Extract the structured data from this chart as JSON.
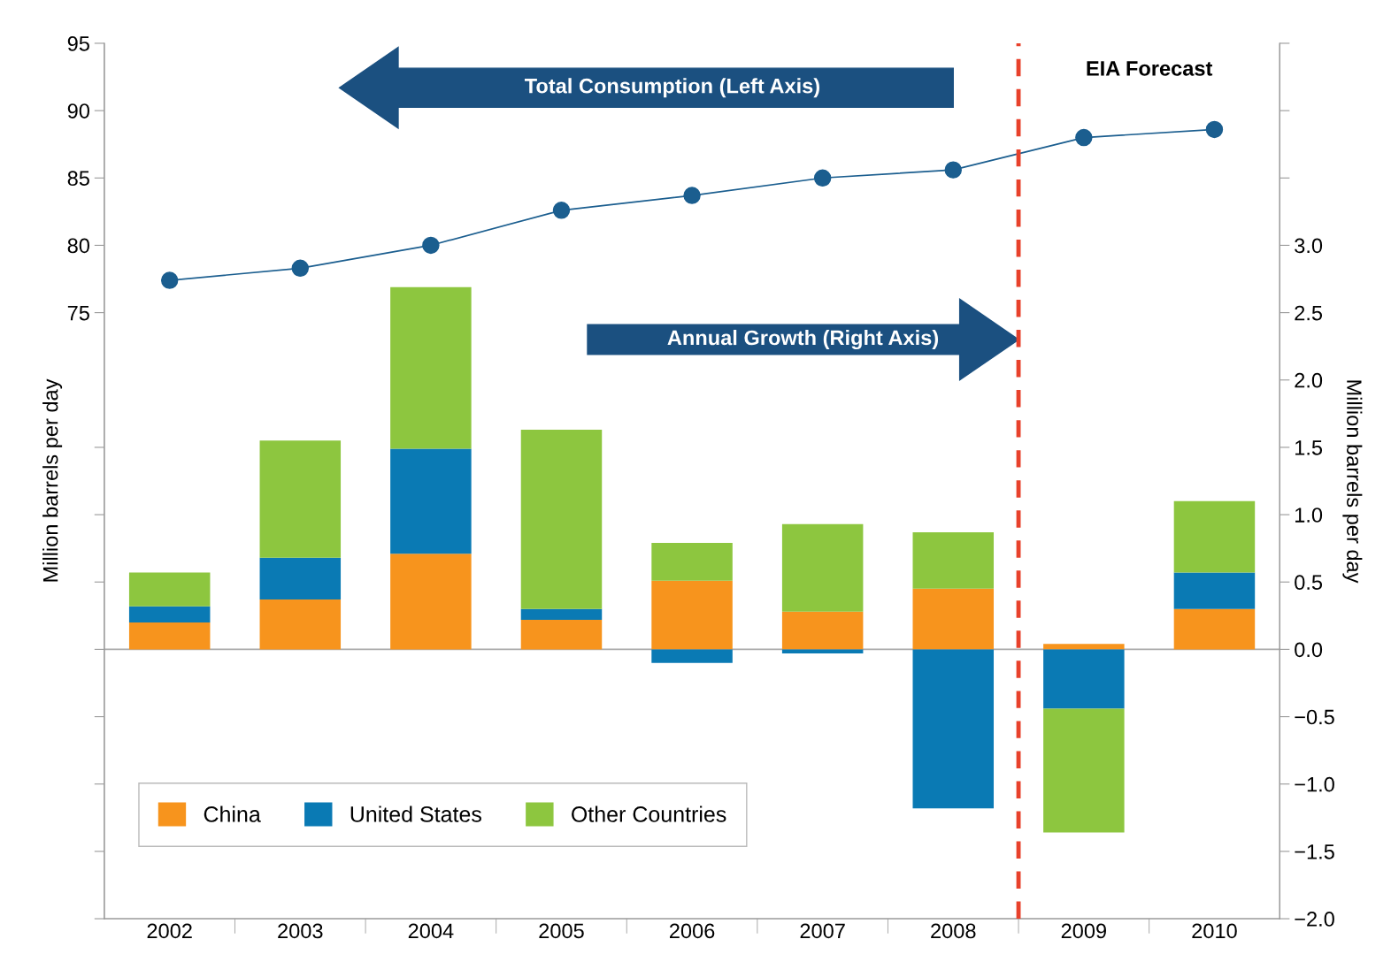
{
  "chart_data": {
    "type": "bar",
    "stacked": true,
    "x": [
      2002,
      2003,
      2004,
      2005,
      2006,
      2007,
      2008,
      2009,
      2010
    ],
    "xlim": [
      2001.5,
      2010.5
    ],
    "xticks": [
      2002,
      2003,
      2004,
      2005,
      2006,
      2007,
      2008,
      2009,
      2010
    ],
    "ref_lines": [
      {
        "axis": "x",
        "value": 2008.5,
        "color": "#e8412b",
        "line_style": "dashed"
      },
      {
        "axis": "y2",
        "value": 0.0,
        "color": "#aaaaaa",
        "line_style": "solid"
      }
    ],
    "series": [
      {
        "name": "China",
        "color": "#f7941d",
        "axis": "y2",
        "values": [
          0.2,
          0.37,
          0.71,
          0.22,
          0.51,
          0.28,
          0.45,
          0.04,
          0.3
        ]
      },
      {
        "name": "United States",
        "color": "#0a7ab4",
        "axis": "y2",
        "values": [
          0.12,
          0.31,
          0.78,
          0.08,
          -0.1,
          -0.03,
          -1.18,
          -0.44,
          0.27
        ]
      },
      {
        "name": "Other Countries",
        "color": "#8dc63f",
        "axis": "y2",
        "values": [
          0.25,
          0.87,
          1.2,
          1.33,
          0.28,
          0.65,
          0.42,
          -0.92,
          0.53
        ]
      },
      {
        "type": "line",
        "color": "#1b5e8f",
        "axis": "y",
        "marker": "circle",
        "values": [
          77.4,
          78.3,
          80.0,
          82.6,
          83.7,
          85.0,
          85.6,
          88.0,
          88.6
        ]
      }
    ],
    "ylabel": "Million barrels per day",
    "y2label": "Million barrels per day",
    "ylim": [
      30,
      95
    ],
    "yticks": [
      75,
      80,
      85,
      90,
      95,
      {
        "value": 65,
        "label": null
      },
      {
        "value": 60,
        "label": null
      },
      {
        "value": 55,
        "label": null
      },
      {
        "value": 50,
        "label": null
      },
      {
        "value": 45,
        "label": null
      },
      {
        "value": 40,
        "label": null
      },
      {
        "value": 35,
        "label": null
      },
      {
        "value": 30,
        "label": null
      }
    ],
    "y2lim": [
      -2.0,
      4.5
    ],
    "y2ticks": [
      {
        "value": -2.0,
        "label": "−2.0"
      },
      {
        "value": -1.5,
        "label": "−1.5"
      },
      {
        "value": -1.0,
        "label": "−1.0"
      },
      {
        "value": -0.5,
        "label": "−0.5"
      },
      {
        "value": 0.0,
        "label": "0.0"
      },
      {
        "value": 0.5,
        "label": "0.5"
      },
      {
        "value": 1.0,
        "label": "1.0"
      },
      {
        "value": 1.5,
        "label": "1.5"
      },
      {
        "value": 2.0,
        "label": "2.0"
      },
      {
        "value": 2.5,
        "label": "2.5"
      },
      {
        "value": 3.0,
        "label": "3.0"
      },
      {
        "value": 3.5,
        "label": null
      },
      {
        "value": 4.0,
        "label": null
      },
      {
        "value": 4.5,
        "label": null
      }
    ],
    "annotations": [
      "Total Consumption (Left Axis)",
      "Annual Growth (Right Axis)",
      "EIA Forecast"
    ],
    "legend": "bottom left",
    "grid": false
  }
}
